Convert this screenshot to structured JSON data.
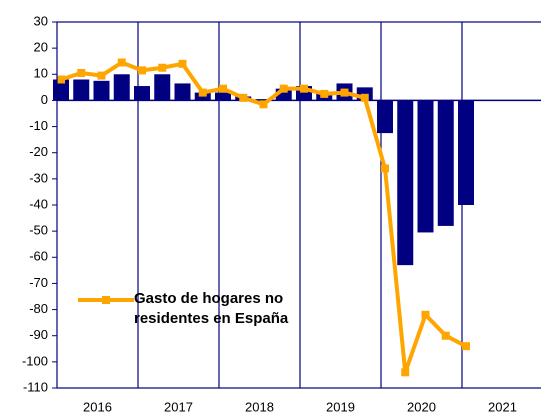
{
  "chart_data": {
    "type": "bar+line",
    "x": [
      2016.0,
      2016.25,
      2016.5,
      2016.75,
      2017.0,
      2017.25,
      2017.5,
      2017.75,
      2018.0,
      2018.25,
      2018.5,
      2018.75,
      2019.0,
      2019.25,
      2019.5,
      2019.75,
      2020.0,
      2020.25,
      2020.5,
      2020.75,
      2021.0
    ],
    "series": [
      {
        "type": "bar",
        "color": "#000080",
        "values": [
          8,
          8,
          7.5,
          10,
          5.5,
          10,
          6.5,
          3,
          3,
          1.5,
          0.5,
          4.5,
          5.5,
          3,
          6.5,
          5,
          -12.5,
          -63,
          -50.5,
          -48,
          -40
        ]
      },
      {
        "type": "line",
        "name": "Gasto de hogares no residentes en España",
        "color": "#ffa500",
        "values": [
          8,
          10.5,
          9.5,
          14.5,
          11.5,
          12.5,
          14,
          3,
          4.5,
          1,
          -1.5,
          4.5,
          4.5,
          2.5,
          3,
          1,
          -26,
          -104,
          -82,
          -90,
          -94
        ]
      }
    ],
    "xlim": [
      2016,
      2022
    ],
    "xticks": [
      2016,
      2017,
      2018,
      2019,
      2020,
      2021
    ],
    "ylim": [
      -110,
      30
    ],
    "yticks": [
      -110,
      -100,
      -90,
      -80,
      -70,
      -60,
      -50,
      -40,
      -30,
      -20,
      -10,
      0,
      10,
      20,
      30
    ],
    "grid": true
  }
}
